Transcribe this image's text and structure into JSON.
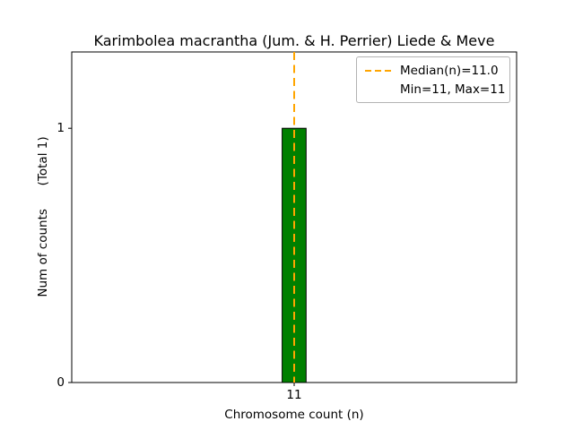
{
  "chart_data": {
    "type": "bar",
    "title": "Karimbolea macrantha (Jum. & H. Perrier) Liede & Meve",
    "xlabel": "Chromosome count (n)",
    "ylabel": "Num of counts      (Total 1)",
    "categories": [
      11
    ],
    "values": [
      1
    ],
    "xlim": [
      10.35,
      11.65
    ],
    "ylim": [
      0,
      1.3
    ],
    "xticks": [
      11
    ],
    "yticks": [
      0,
      1
    ],
    "bar_width": 0.07,
    "bar_color": "#008000",
    "bar_edge_color": "#000000",
    "grid": false,
    "median_line": {
      "x": 11,
      "color": "#ffa500",
      "style": "dashed"
    },
    "legend": {
      "position": "upper right",
      "entries": [
        "Median(n)=11.0",
        "Min=11, Max=11"
      ]
    },
    "stats": {
      "median": 11.0,
      "min": 11,
      "max": 11,
      "total_counts": 1
    }
  }
}
